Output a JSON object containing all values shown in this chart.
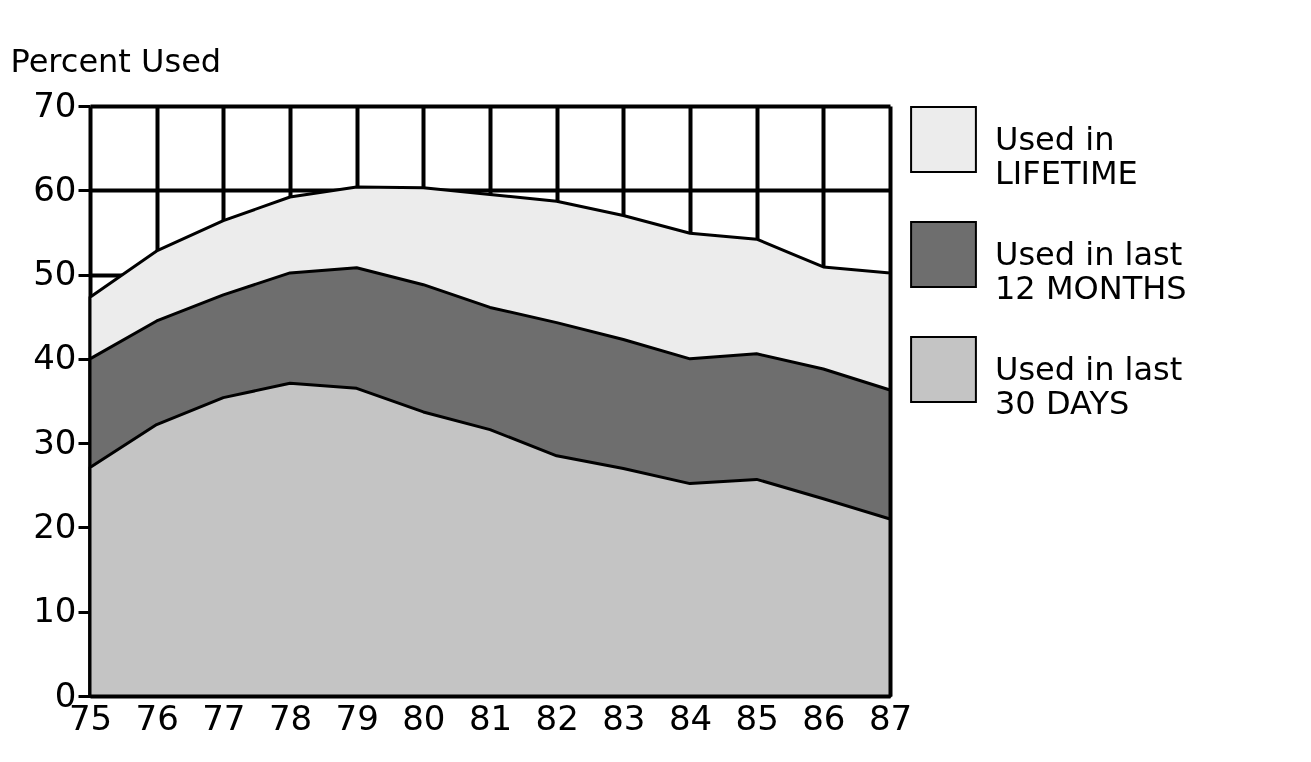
{
  "chart_data": {
    "type": "area",
    "ylabel": "Percent Used",
    "x": [
      75,
      76,
      77,
      78,
      79,
      80,
      81,
      82,
      83,
      84,
      85,
      86,
      87
    ],
    "series": [
      {
        "name": "Used in\nLIFETIME",
        "color": "#ececec",
        "values": [
          47.3,
          52.8,
          56.4,
          59.2,
          60.4,
          60.3,
          59.5,
          58.7,
          57.0,
          54.9,
          54.2,
          50.9,
          50.2
        ]
      },
      {
        "name": "Used in last\n12 MONTHS",
        "color": "#6e6e6e",
        "values": [
          40.0,
          44.5,
          47.6,
          50.2,
          50.8,
          48.8,
          46.1,
          44.3,
          42.3,
          40.0,
          40.6,
          38.8,
          36.3
        ]
      },
      {
        "name": "Used in last\n30 DAYS",
        "color": "#c4c4c4",
        "values": [
          27.1,
          32.2,
          35.4,
          37.1,
          36.5,
          33.7,
          31.6,
          28.5,
          27.0,
          25.2,
          25.7,
          23.4,
          21.0
        ]
      }
    ],
    "xlim": [
      75,
      87
    ],
    "xticks": [
      75,
      76,
      77,
      78,
      79,
      80,
      81,
      82,
      83,
      84,
      85,
      86,
      87
    ],
    "ylim": [
      0,
      70
    ],
    "yticks": [
      0,
      10,
      20,
      30,
      40,
      50,
      60,
      70
    ],
    "grid": true,
    "legend": "right"
  }
}
